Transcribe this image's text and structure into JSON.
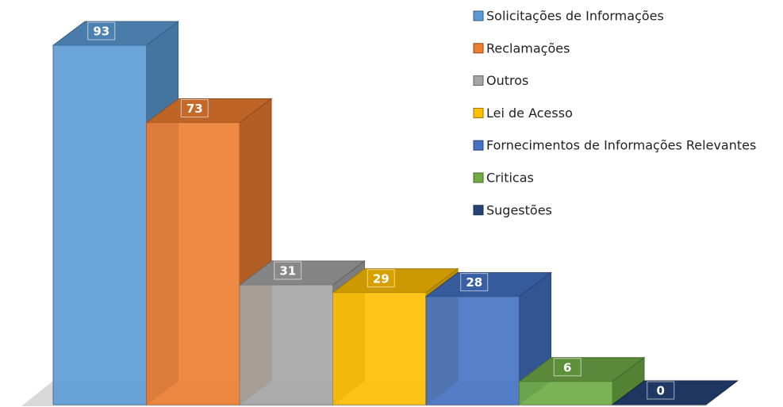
{
  "chart_data": {
    "type": "bar3d",
    "categories": [
      "Solicitações de Informações",
      "Reclamações",
      "Outros",
      "Lei de Acesso",
      "Fornecimentos de Informações Relevantes",
      "Criticas",
      "Sugestões"
    ],
    "values": [
      93,
      73,
      31,
      29,
      28,
      6,
      0
    ],
    "colors": [
      "#5b9bd5",
      "#ed7d31",
      "#a5a5a5",
      "#ffc000",
      "#4472c4",
      "#70ad47",
      "#264478"
    ],
    "legend": "top-right"
  }
}
